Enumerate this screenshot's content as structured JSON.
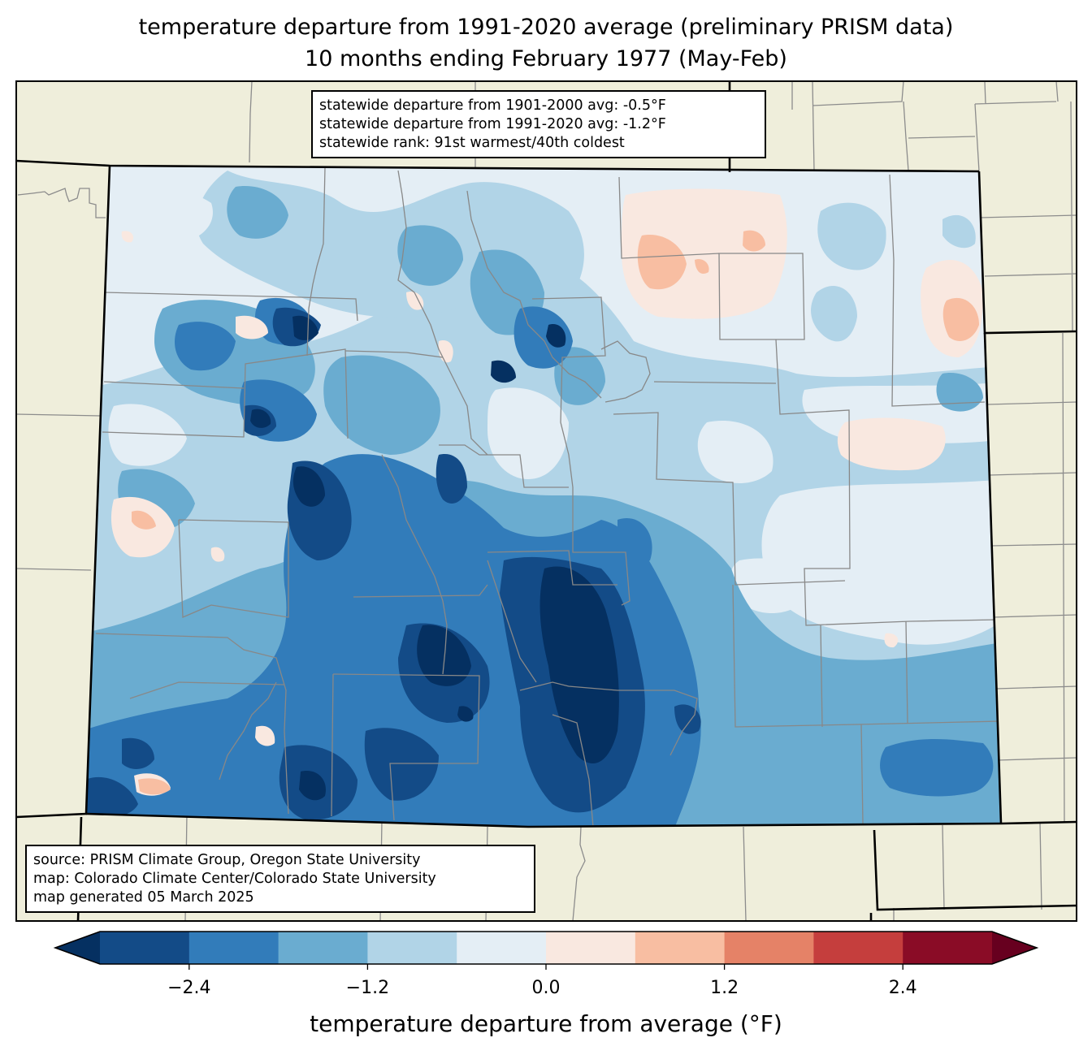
{
  "title": {
    "line1": "temperature departure from 1991-2020 average (preliminary PRISM data)",
    "line2": "10 months ending February 1977 (May-Feb)"
  },
  "stats": {
    "line1": "statewide departure from 1901-2000 avg: -0.5°F",
    "line2": "statewide departure from 1991-2020 avg: -1.2°F",
    "line3": "statewide rank: 91st warmest/40th coldest"
  },
  "credits": {
    "line1": "source: PRISM Climate Group, Oregon State University",
    "line2": "map: Colorado Climate Center/Colorado State University",
    "line3": "map generated 05 March 2025"
  },
  "colorbar": {
    "label": "temperature departure from average (°F)",
    "levels": [
      -3.0,
      -2.4,
      -1.8,
      -1.2,
      -0.6,
      0.0,
      0.6,
      1.2,
      1.8,
      2.4,
      3.0
    ],
    "colors": [
      "#134b87",
      "#327cba",
      "#6aacd0",
      "#b1d4e7",
      "#e4eef5",
      "#f9e8e0",
      "#f8bea2",
      "#e58267",
      "#c53e3d",
      "#8a0c26"
    ],
    "under_color": "#053061",
    "over_color": "#67001f",
    "ticks": [
      {
        "value": -2.4,
        "label": "−2.4"
      },
      {
        "value": -1.2,
        "label": "−1.2"
      },
      {
        "value": 0.0,
        "label": "0.0"
      },
      {
        "value": 1.2,
        "label": "1.2"
      },
      {
        "value": 2.4,
        "label": "2.4"
      }
    ]
  },
  "map_colors": {
    "land": "#efeedb",
    "county_line": "#888888",
    "state_line": "#000000"
  }
}
